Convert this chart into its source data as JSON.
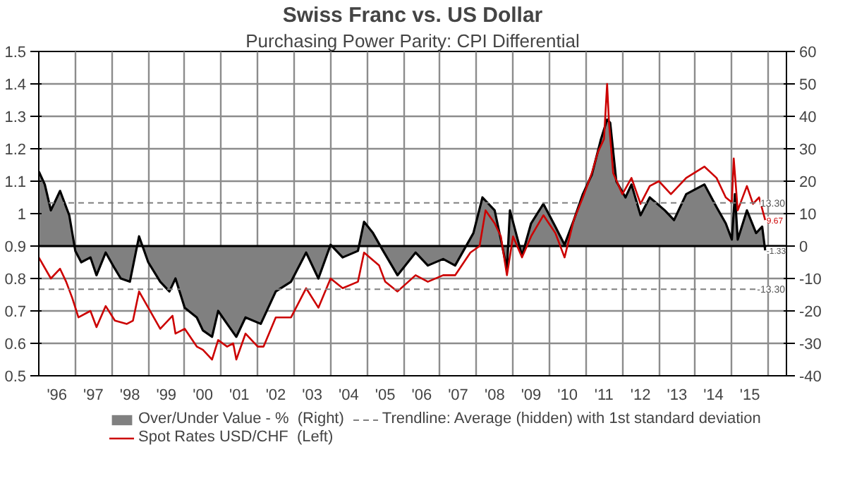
{
  "chart_data": {
    "type": "line",
    "title": "Swiss Franc vs. US Dollar",
    "subtitle": "Purchasing Power Parity: CPI Differential",
    "xlim": [
      "1996",
      "2016-07"
    ],
    "xticks": [
      {
        "value": "1996",
        "label": null
      },
      {
        "value": "1996-07",
        "label": "'96"
      },
      {
        "value": "1997",
        "label": null
      },
      {
        "value": "1997-07",
        "label": "'97"
      },
      {
        "value": "1998",
        "label": null
      },
      {
        "value": "1998-07",
        "label": "'98"
      },
      {
        "value": "1999",
        "label": null
      },
      {
        "value": "1999-07",
        "label": "'99"
      },
      {
        "value": "2000",
        "label": null
      },
      {
        "value": "2000-07",
        "label": "'00"
      },
      {
        "value": "2001",
        "label": null
      },
      {
        "value": "2001-07",
        "label": "'01"
      },
      {
        "value": "2002",
        "label": null
      },
      {
        "value": "2002-07",
        "label": "'02"
      },
      {
        "value": "2003",
        "label": null
      },
      {
        "value": "2003-07",
        "label": "'03"
      },
      {
        "value": "2004",
        "label": null
      },
      {
        "value": "2004-07",
        "label": "'04"
      },
      {
        "value": "2005",
        "label": null
      },
      {
        "value": "2005-07",
        "label": "'05"
      },
      {
        "value": "2006",
        "label": null
      },
      {
        "value": "2006-07",
        "label": "'06"
      },
      {
        "value": "2007",
        "label": null
      },
      {
        "value": "2007-07",
        "label": "'07"
      },
      {
        "value": "2008",
        "label": null
      },
      {
        "value": "2008-07",
        "label": "'08"
      },
      {
        "value": "2009",
        "label": null
      },
      {
        "value": "2009-07",
        "label": "'09"
      },
      {
        "value": "2010",
        "label": null
      },
      {
        "value": "2010-07",
        "label": "'10"
      },
      {
        "value": "2011",
        "label": null
      },
      {
        "value": "2011-07",
        "label": "'11"
      },
      {
        "value": "2012",
        "label": null
      },
      {
        "value": "2012-07",
        "label": "'12"
      },
      {
        "value": "2013",
        "label": null
      },
      {
        "value": "2013-07",
        "label": "'13"
      },
      {
        "value": "2014",
        "label": null
      },
      {
        "value": "2014-07",
        "label": "'14"
      },
      {
        "value": "2015",
        "label": null
      },
      {
        "value": "2015-07",
        "label": "'15"
      },
      {
        "value": "2016",
        "label": null
      }
    ],
    "ylim": [
      0.5,
      1.5
    ],
    "yticks": [
      0.5,
      0.6,
      0.7,
      0.8,
      0.9,
      1,
      1.1,
      1.2,
      1.3,
      1.4,
      1.5
    ],
    "y2lim": [
      -40,
      60
    ],
    "y2ticks": [
      -40,
      -30,
      -20,
      -10,
      0,
      10,
      20,
      30,
      40,
      50,
      60
    ],
    "grid": true,
    "legend": "bottom",
    "marker": "none",
    "line_style": "solid",
    "series": [
      {
        "name": "Over/Under Value - %  (Right)",
        "type": "area",
        "axis": "y2",
        "color": "#808080",
        "x": [
          "1996-01",
          "1996-03",
          "1996-05",
          "1996-08",
          "1996-11",
          "1997-01",
          "1997-03",
          "1997-06",
          "1997-08",
          "1997-11",
          "1998-02",
          "1998-04",
          "1998-07",
          "1998-10",
          "1999-01",
          "1999-05",
          "1999-08",
          "1999-10",
          "2000-01",
          "2000-05",
          "2000-07",
          "2000-10",
          "2000-12",
          "2001-03",
          "2001-06",
          "2001-09",
          "2002-02",
          "2002-07",
          "2002-12",
          "2003-05",
          "2003-09",
          "2004-01",
          "2004-05",
          "2004-10",
          "2004-12",
          "2005-03",
          "2005-06",
          "2005-11",
          "2006-05",
          "2006-09",
          "2007-02",
          "2007-06",
          "2007-12",
          "2008-03",
          "2008-07",
          "2008-09",
          "2008-11",
          "2008-12",
          "2009-04",
          "2009-07",
          "2009-11",
          "2010-03",
          "2010-06",
          "2010-09",
          "2010-12",
          "2011-03",
          "2011-06",
          "2011-08",
          "2011-09",
          "2011-11",
          "2012-02",
          "2012-04",
          "2012-07",
          "2012-10",
          "2013-03",
          "2013-06",
          "2013-10",
          "2014-04",
          "2014-08",
          "2014-11",
          "2015-01",
          "2015-02",
          "2015-03",
          "2015-06",
          "2015-09",
          "2015-11",
          "2015-12"
        ],
        "values": [
          23,
          19,
          11,
          17,
          9.5,
          -1.5,
          -5,
          -3.5,
          -9,
          -2,
          -7,
          -10,
          -11,
          3,
          -5,
          -11,
          -14,
          -10,
          -19,
          -22,
          -26,
          -28,
          -20,
          -24,
          -28,
          -22,
          -24,
          -14,
          -11,
          -2,
          -10,
          0.4,
          -3.5,
          -1.5,
          7.5,
          4,
          -1,
          -9,
          -2,
          -6,
          -4,
          -6,
          4,
          15,
          11,
          2,
          -7,
          11,
          -3,
          7,
          13,
          6,
          0.4,
          8,
          16,
          22,
          33,
          39,
          38,
          20,
          15,
          19,
          9.5,
          15,
          11,
          8,
          16,
          19,
          12,
          7,
          2,
          16,
          2,
          11,
          4,
          6,
          -1.33
        ]
      },
      {
        "name": "Spot Rates USD/CHF  (Left)",
        "color": "#cc0000",
        "x": [
          "1996-01",
          "1996-05",
          "1996-08",
          "1996-10",
          "1996-12",
          "1997-02",
          "1997-06",
          "1997-08",
          "1997-11",
          "1998-02",
          "1998-06",
          "1998-08",
          "1998-10",
          "1999-01",
          "1999-05",
          "1999-09",
          "1999-10",
          "2000-01",
          "2000-05",
          "2000-07",
          "2000-10",
          "2000-12",
          "2001-03",
          "2001-05",
          "2001-06",
          "2001-09",
          "2002-01",
          "2002-03",
          "2002-07",
          "2002-12",
          "2003-05",
          "2003-09",
          "2004-01",
          "2004-05",
          "2004-10",
          "2004-12",
          "2005-05",
          "2005-07",
          "2005-11",
          "2006-05",
          "2006-09",
          "2007-02",
          "2007-06",
          "2007-11",
          "2008-02",
          "2008-04",
          "2008-07",
          "2008-09",
          "2008-11",
          "2009-01",
          "2009-04",
          "2009-07",
          "2009-11",
          "2010-03",
          "2010-06",
          "2010-09",
          "2010-12",
          "2011-03",
          "2011-05",
          "2011-07",
          "2011-08",
          "2011-08-20",
          "2011-10",
          "2012-01",
          "2012-04",
          "2012-07",
          "2012-10",
          "2013-01",
          "2013-05",
          "2013-10",
          "2014-04",
          "2014-08",
          "2014-11",
          "2015-01",
          "2015-01-20",
          "2015-03",
          "2015-06",
          "2015-08",
          "2015-10",
          "2015-12"
        ],
        "values": [
          0.865,
          0.8,
          0.83,
          0.79,
          0.74,
          0.68,
          0.7,
          0.65,
          0.715,
          0.67,
          0.66,
          0.67,
          0.76,
          0.71,
          0.645,
          0.685,
          0.63,
          0.645,
          0.59,
          0.58,
          0.55,
          0.61,
          0.59,
          0.6,
          0.55,
          0.63,
          0.59,
          0.59,
          0.68,
          0.68,
          0.77,
          0.71,
          0.8,
          0.77,
          0.79,
          0.88,
          0.84,
          0.79,
          0.76,
          0.81,
          0.79,
          0.81,
          0.81,
          0.88,
          0.9,
          1.01,
          0.97,
          0.93,
          0.81,
          0.93,
          0.865,
          0.93,
          0.995,
          0.94,
          0.865,
          0.98,
          1.05,
          1.125,
          1.19,
          1.23,
          1.4,
          1.28,
          1.125,
          1.06,
          1.11,
          1.03,
          1.085,
          1.1,
          1.06,
          1.11,
          1.145,
          1.11,
          1.05,
          1.035,
          1.17,
          1.01,
          1.085,
          1.03,
          1.05,
          0.98
        ]
      }
    ],
    "ref_lines": [
      {
        "axis": "y2",
        "value": 13.3,
        "label": "13.30",
        "color": "#808080",
        "line_style": "dashed"
      },
      {
        "axis": "y2",
        "value": -13.3,
        "label": "-13.30",
        "color": "#808080",
        "line_style": "dashed"
      }
    ],
    "annotations": [
      "Trendline: Average (hidden) with 1st standard deviation",
      {
        "text": "9.67",
        "x": "2015-12",
        "y": 0.98
      },
      {
        "text": "-1.33",
        "x": "2015-12",
        "y": 0.887
      }
    ]
  }
}
